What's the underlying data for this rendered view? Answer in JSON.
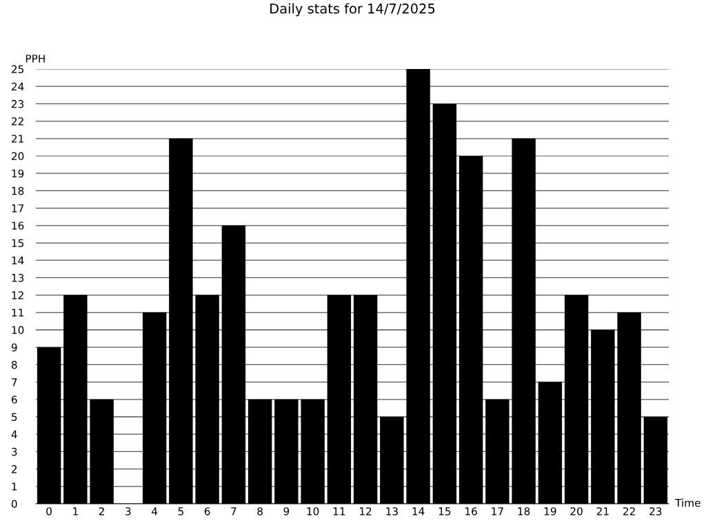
{
  "chart_data": {
    "type": "bar",
    "title": "Daily stats for 14/7/2025",
    "xlabel": "Time",
    "ylabel": "PPH",
    "categories": [
      "0",
      "1",
      "2",
      "3",
      "4",
      "5",
      "6",
      "7",
      "8",
      "9",
      "10",
      "11",
      "12",
      "13",
      "14",
      "15",
      "16",
      "17",
      "18",
      "19",
      "20",
      "21",
      "22",
      "23"
    ],
    "values": [
      9,
      12,
      6,
      0,
      11,
      21,
      12,
      16,
      6,
      6,
      6,
      12,
      12,
      5,
      25,
      23,
      20,
      6,
      21,
      7,
      12,
      10,
      11,
      5
    ],
    "color": "#000000",
    "ylim": [
      0,
      25
    ],
    "yticks": [
      0,
      1,
      2,
      3,
      4,
      5,
      6,
      7,
      8,
      9,
      10,
      11,
      12,
      13,
      14,
      15,
      16,
      17,
      18,
      19,
      20,
      21,
      22,
      23,
      24,
      25
    ],
    "grid": "y",
    "legend": false
  }
}
